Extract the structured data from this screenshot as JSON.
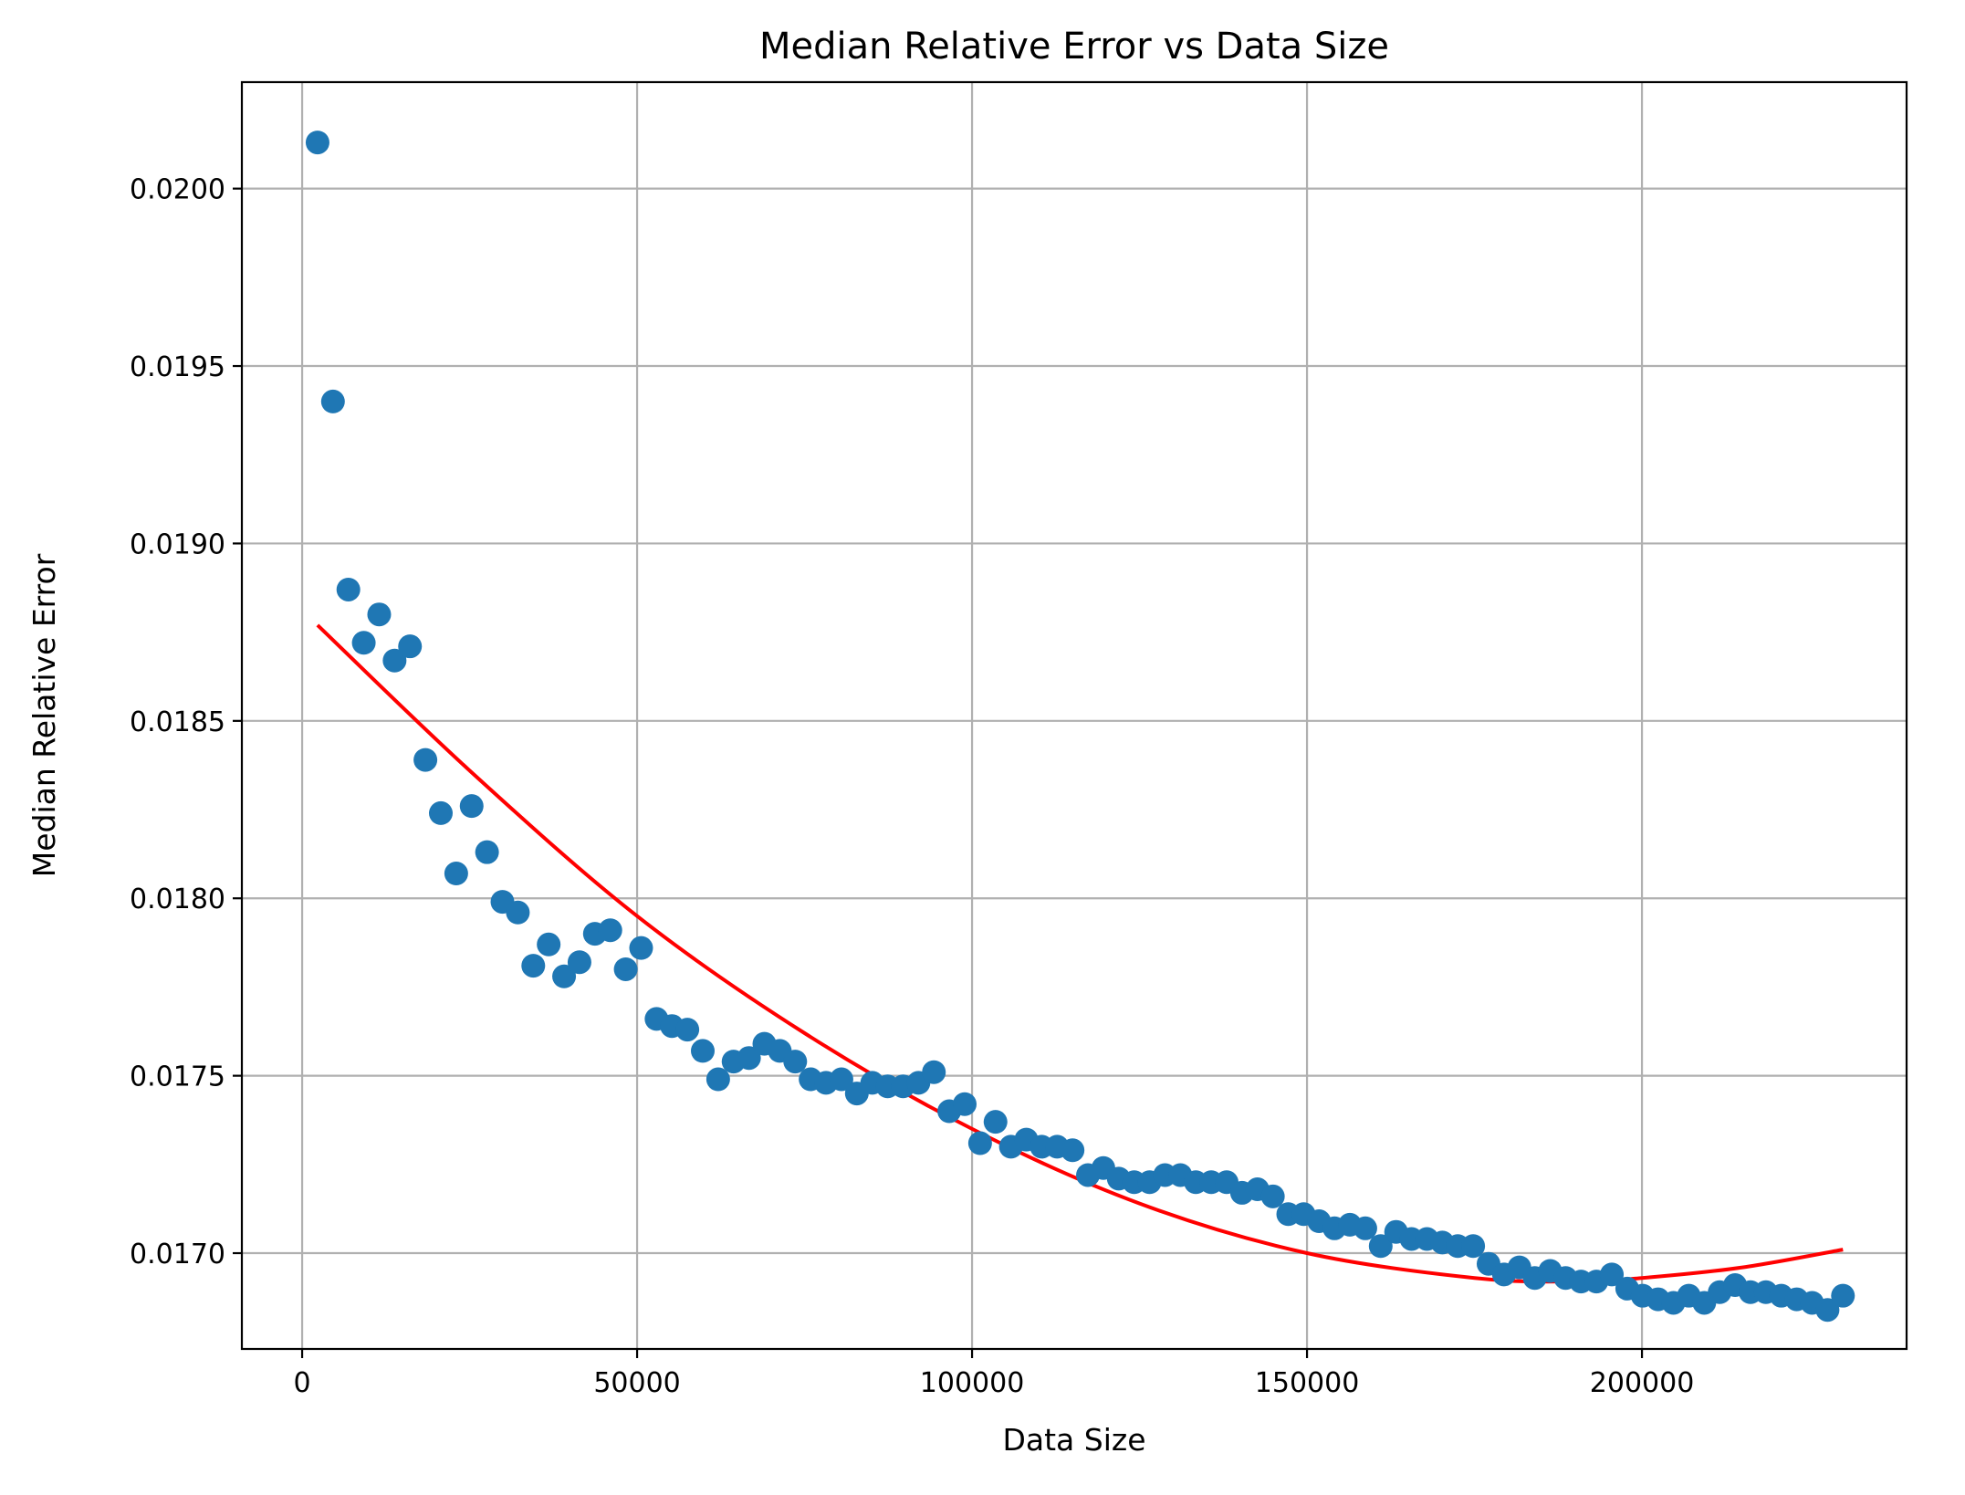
{
  "chart_data": {
    "type": "scatter",
    "title": "Median Relative Error vs Data Size",
    "xlabel": "Data Size",
    "ylabel": "Median Relative Error",
    "xlim": [
      -9000,
      239500
    ],
    "ylim": [
      0.01673,
      0.0203
    ],
    "xticks": [
      0,
      50000,
      100000,
      150000,
      200000
    ],
    "xtick_labels": [
      "0",
      "50000",
      "100000",
      "150000",
      "200000"
    ],
    "yticks": [
      0.017,
      0.0175,
      0.018,
      0.0185,
      0.019,
      0.0195,
      0.02
    ],
    "ytick_labels": [
      "0.0170",
      "0.0175",
      "0.0180",
      "0.0185",
      "0.0190",
      "0.0195",
      "0.0200"
    ],
    "grid": true,
    "legend": "none",
    "colors": {
      "points": "#1f77b4",
      "fit": "#ff0000"
    },
    "series": [
      {
        "kind": "scatter",
        "x": [
          2300,
          4600,
          6900,
          9200,
          11500,
          13800,
          16100,
          18400,
          20700,
          23000,
          25300,
          27600,
          29900,
          32200,
          34500,
          36800,
          39100,
          41400,
          43700,
          46000,
          48300,
          50600,
          52900,
          55200,
          57500,
          59800,
          62100,
          64400,
          66700,
          69000,
          71300,
          73600,
          75900,
          78200,
          80500,
          82800,
          85100,
          87400,
          89700,
          92000,
          94300,
          96600,
          98900,
          101200,
          103500,
          105800,
          108100,
          110400,
          112700,
          115000,
          117300,
          119600,
          121900,
          124200,
          126500,
          128800,
          131100,
          133400,
          135700,
          138000,
          140300,
          142600,
          144900,
          147200,
          149500,
          151800,
          154100,
          156400,
          158700,
          161000,
          163300,
          165600,
          167900,
          170200,
          172500,
          174800,
          177100,
          179400,
          181700,
          184000,
          186300,
          188600,
          190900,
          193200,
          195500,
          197800,
          200100,
          202400,
          204700,
          207000,
          209300,
          211600,
          213900,
          216200,
          218500,
          220800,
          223100,
          225400,
          227700,
          230000
        ],
        "y": [
          0.02013,
          0.0194,
          0.01887,
          0.01872,
          0.0188,
          0.01867,
          0.01871,
          0.01839,
          0.01824,
          0.01807,
          0.01826,
          0.01813,
          0.01799,
          0.01796,
          0.01781,
          0.01787,
          0.01778,
          0.01782,
          0.0179,
          0.01791,
          0.0178,
          0.01786,
          0.01766,
          0.01764,
          0.01763,
          0.01757,
          0.01749,
          0.01754,
          0.01755,
          0.01759,
          0.01757,
          0.01754,
          0.01749,
          0.01748,
          0.01749,
          0.01745,
          0.01748,
          0.01747,
          0.01747,
          0.01748,
          0.01751,
          0.0174,
          0.01742,
          0.01731,
          0.01737,
          0.0173,
          0.01732,
          0.0173,
          0.0173,
          0.01729,
          0.01722,
          0.01724,
          0.01721,
          0.0172,
          0.0172,
          0.01722,
          0.01722,
          0.0172,
          0.0172,
          0.0172,
          0.01717,
          0.01718,
          0.01716,
          0.01711,
          0.01711,
          0.01709,
          0.01707,
          0.01708,
          0.01707,
          0.01702,
          0.01706,
          0.01704,
          0.01704,
          0.01703,
          0.01702,
          0.01702,
          0.01697,
          0.01694,
          0.01696,
          0.01693,
          0.01695,
          0.01693,
          0.01692,
          0.01692,
          0.01694,
          0.0169,
          0.01688,
          0.01687,
          0.01686,
          0.01688,
          0.01686,
          0.01689,
          0.01691,
          0.01689,
          0.01689,
          0.01688,
          0.01687,
          0.01686,
          0.01684,
          0.01688
        ]
      },
      {
        "kind": "line",
        "x": [
          2300,
          25000,
          50000,
          75000,
          100000,
          125000,
          150000,
          175000,
          190000,
          200000,
          215000,
          230000
        ],
        "y": [
          0.01877,
          0.01836,
          0.01795,
          0.01762,
          0.01735,
          0.01714,
          0.017,
          0.01693,
          0.01692,
          0.01693,
          0.01696,
          0.01701
        ]
      }
    ]
  }
}
